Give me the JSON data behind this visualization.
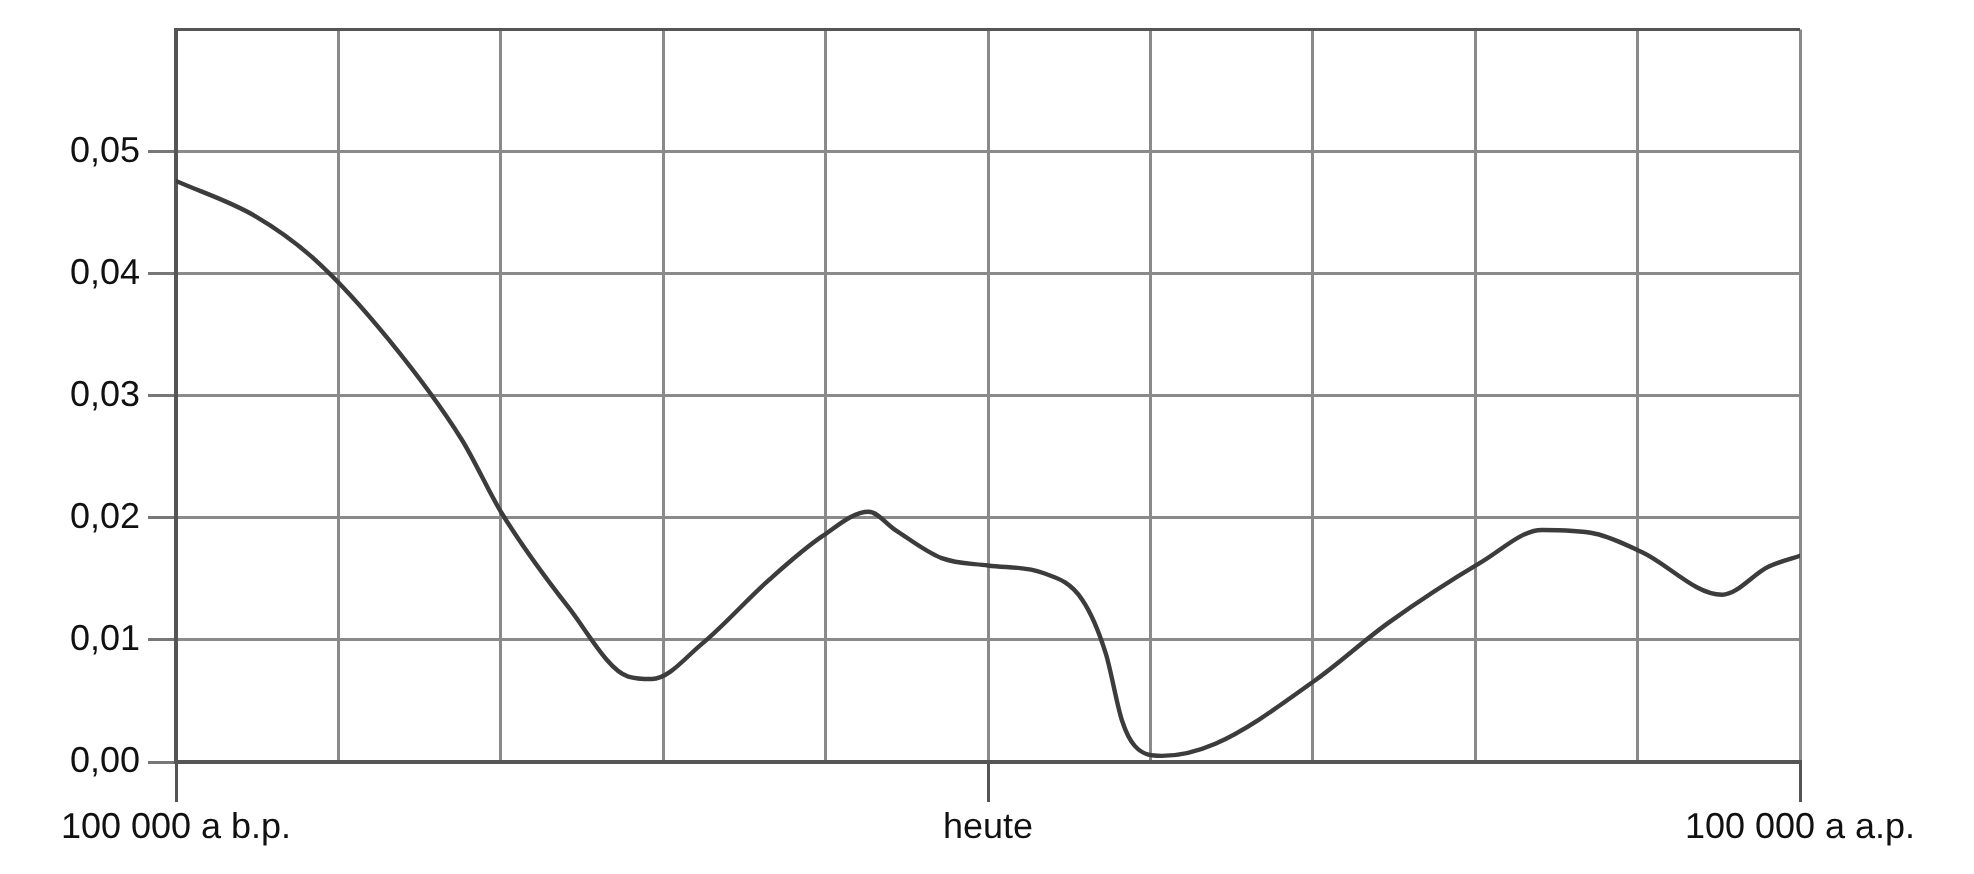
{
  "chart_data": {
    "type": "line",
    "x": [
      -100000,
      -90200,
      -82800,
      -73800,
      -64800,
      -59900,
      -51700,
      -44300,
      -41400,
      -35200,
      -27000,
      -20400,
      -14700,
      -11400,
      -5700,
      0,
      6700,
      11600,
      14500,
      16500,
      18100,
      21400,
      28000,
      40300,
      49300,
      60800,
      68200,
      74800,
      80500,
      90400,
      96100,
      100000
    ],
    "series": [
      {
        "color": "#3c3c3c",
        "values": [
          0.0476,
          0.0447,
          0.0411,
          0.0346,
          0.0264,
          0.0204,
          0.0127,
          0.007,
          0.0068,
          0.0097,
          0.0149,
          0.0185,
          0.0205,
          0.019,
          0.0167,
          0.0161,
          0.0155,
          0.0133,
          0.0089,
          0.0034,
          0.0013,
          0.0005,
          0.0015,
          0.0067,
          0.0114,
          0.0164,
          0.019,
          0.0187,
          0.0172,
          0.0137,
          0.016,
          0.0169
        ]
      }
    ],
    "xlim": [
      -100000,
      100000
    ],
    "xticks": [
      {
        "value": -100000,
        "label": "100 000 a b.p."
      },
      {
        "value": -80000,
        "label": null
      },
      {
        "value": -60000,
        "label": null
      },
      {
        "value": -40000,
        "label": null
      },
      {
        "value": -20000,
        "label": null
      },
      {
        "value": 0,
        "label": "heute"
      },
      {
        "value": 20000,
        "label": null
      },
      {
        "value": 40000,
        "label": null
      },
      {
        "value": 60000,
        "label": null
      },
      {
        "value": 80000,
        "label": null
      },
      {
        "value": 100000,
        "label": "100 000 a a.p."
      }
    ],
    "ylim": [
      0,
      0.06
    ],
    "yticks": [
      {
        "value": 0,
        "label": "0,00"
      },
      {
        "value": 0.01,
        "label": "0,01"
      },
      {
        "value": 0.02,
        "label": "0,02"
      },
      {
        "value": 0.03,
        "label": "0,03"
      },
      {
        "value": 0.04,
        "label": "0,04"
      },
      {
        "value": 0.05,
        "label": "0,05"
      },
      {
        "value": 0.06,
        "label": null
      }
    ],
    "grid": true,
    "marker": "none",
    "line_style": "solid",
    "legend": false
  }
}
